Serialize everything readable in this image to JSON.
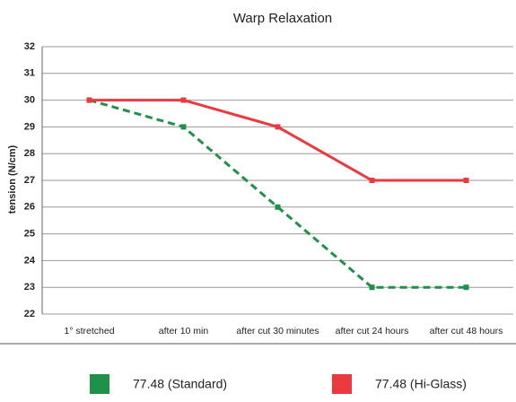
{
  "chart_data": {
    "type": "line",
    "title": "Warp Relaxation",
    "y_label": "tension (N/cm)",
    "categories": [
      "1° stretched",
      "after 10 min",
      "after cut 30 minutes",
      "after cut 24 hours",
      "after cut 48 hours"
    ],
    "series": [
      {
        "name": "77.48 (Standard)",
        "color": "#1f9148",
        "dashed": true,
        "values": [
          30,
          29,
          26,
          23,
          23
        ]
      },
      {
        "name": "77.48 (Hi-Glass)",
        "color": "#ea3a3f",
        "dashed": false,
        "values": [
          30,
          30,
          29,
          27,
          27
        ]
      }
    ],
    "ylim": [
      22,
      32
    ],
    "yticks": [
      22,
      23,
      24,
      25,
      26,
      27,
      28,
      29,
      30,
      31,
      32
    ],
    "grid": true
  }
}
